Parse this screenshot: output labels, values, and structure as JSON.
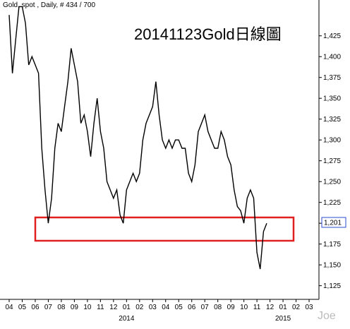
{
  "chart_data": {
    "type": "line",
    "header": "Gold, spot , Daily, # 434 / 700",
    "title": "20141123Gold日線圖",
    "watermark": "Joe",
    "categories": [
      "04",
      null,
      null,
      null,
      "05",
      null,
      null,
      null,
      "06",
      null,
      null,
      null,
      "07",
      null,
      null,
      null,
      "08",
      null,
      null,
      null,
      "09",
      null,
      null,
      null,
      "10",
      null,
      null,
      null,
      "11",
      null,
      null,
      null,
      "12",
      null,
      null,
      null,
      "01",
      null,
      null,
      null,
      "02",
      null,
      null,
      null,
      "03",
      null,
      null,
      null,
      "04",
      null,
      null,
      null,
      "05",
      null,
      null,
      null,
      "06",
      null,
      null,
      null,
      "07",
      null,
      null,
      null,
      "08",
      null,
      null,
      null,
      "09",
      null,
      null,
      null,
      "10",
      null,
      null,
      null,
      "11",
      null,
      null,
      null,
      "12",
      null,
      null,
      null,
      "01",
      null,
      null,
      null,
      "02",
      null,
      null,
      null,
      "03",
      null,
      null,
      null
    ],
    "years": [
      "2014",
      "2015"
    ],
    "series": [
      {
        "name": "Gold",
        "color": "#000000",
        "values": [
          1450,
          1380,
          1420,
          1460,
          1460,
          1440,
          1390,
          1400,
          1390,
          1380,
          1290,
          1240,
          1200,
          1230,
          1290,
          1320,
          1310,
          1340,
          1370,
          1410,
          1390,
          1370,
          1320,
          1330,
          1310,
          1280,
          1320,
          1350,
          1310,
          1290,
          1250,
          1240,
          1230,
          1240,
          1210,
          1200,
          1240,
          1250,
          1260,
          1250,
          1260,
          1300,
          1320,
          1330,
          1340,
          1370,
          1330,
          1300,
          1290,
          1300,
          1290,
          1300,
          1300,
          1290,
          1290,
          1260,
          1250,
          1270,
          1310,
          1320,
          1330,
          1310,
          1300,
          1290,
          1290,
          1310,
          1300,
          1280,
          1270,
          1240,
          1220,
          1215,
          1200,
          1230,
          1240,
          1230,
          1165,
          1145,
          1190,
          1200,
          null,
          null,
          null,
          null,
          null,
          null,
          null,
          null,
          null,
          null,
          null,
          null,
          null,
          null,
          null,
          null
        ]
      }
    ],
    "last_price": {
      "value": 1201,
      "label": "1,201"
    },
    "ylim": [
      1112,
      1468
    ],
    "yticks": [
      {
        "value": 1125,
        "label": "1,125"
      },
      {
        "value": 1150,
        "label": "1,150"
      },
      {
        "value": 1175,
        "label": "1,175"
      },
      {
        "value": 1200,
        "label": "1,200"
      },
      {
        "value": 1225,
        "label": "1,225"
      },
      {
        "value": 1250,
        "label": "1,250"
      },
      {
        "value": 1275,
        "label": "1,275"
      },
      {
        "value": 1300,
        "label": "1,300"
      },
      {
        "value": 1325,
        "label": "1,325"
      },
      {
        "value": 1350,
        "label": "1,350"
      },
      {
        "value": 1375,
        "label": "1,375"
      },
      {
        "value": 1400,
        "label": "1,400"
      },
      {
        "value": 1425,
        "label": "1,425"
      }
    ]
  }
}
